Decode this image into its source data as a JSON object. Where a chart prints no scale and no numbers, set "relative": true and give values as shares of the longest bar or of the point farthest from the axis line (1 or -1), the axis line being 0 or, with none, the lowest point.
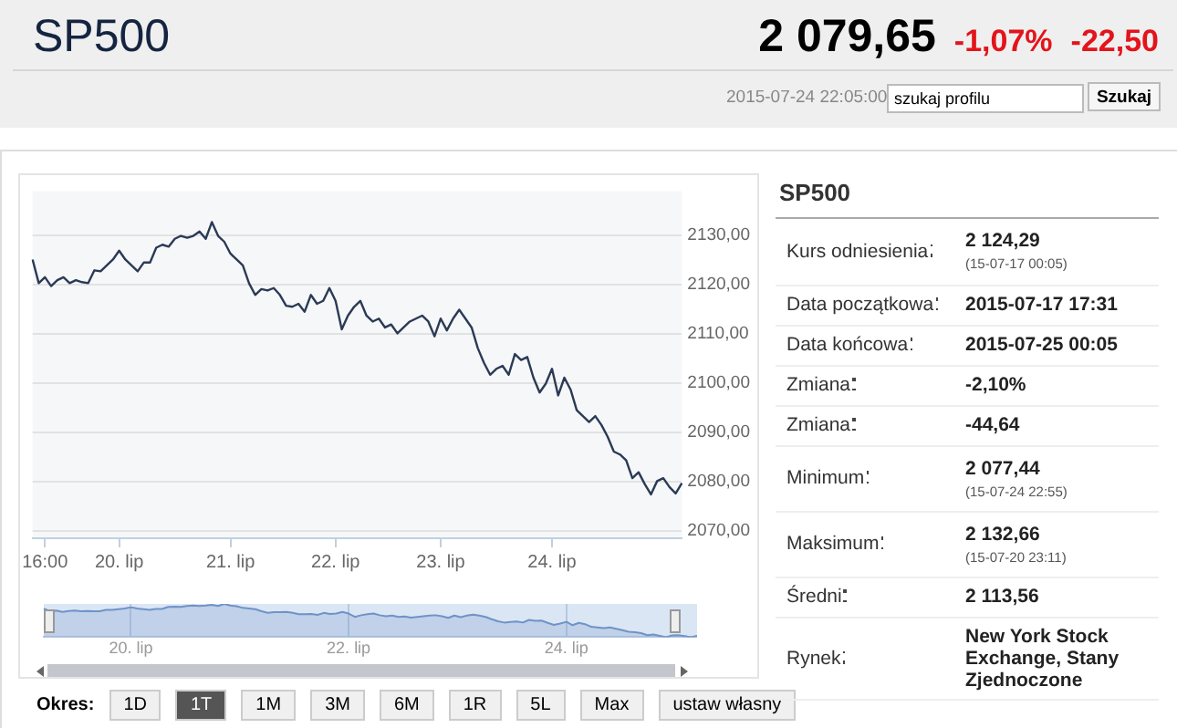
{
  "chart_data": [
    {
      "type": "other",
      "title": "SP500",
      "annotations": [
        "2 079,65",
        "-1,07%",
        "-22,50",
        "2015-07-24 22:05:00",
        "szukaj profilu",
        "Szukaj"
      ]
    },
    {
      "type": "line",
      "color": "#2b3a55",
      "grid": "y",
      "categories": [
        null,
        null,
        "16:00",
        null,
        null,
        null,
        null,
        null,
        null,
        null,
        null,
        null,
        null,
        null,
        "20. lip",
        null,
        null,
        null,
        null,
        null,
        null,
        null,
        null,
        null,
        null,
        null,
        null,
        null,
        null,
        null,
        null,
        null,
        "21. lip",
        null,
        null,
        null,
        null,
        null,
        null,
        null,
        null,
        null,
        null,
        null,
        null,
        null,
        null,
        null,
        null,
        "22. lip",
        null,
        null,
        null,
        null,
        null,
        null,
        null,
        null,
        null,
        null,
        null,
        null,
        null,
        null,
        null,
        null,
        "23. lip",
        null,
        null,
        null,
        null,
        null,
        null,
        null,
        null,
        null,
        null,
        null,
        null,
        null,
        null,
        null,
        null,
        null,
        "24. lip",
        null,
        null,
        null,
        null,
        null,
        null,
        null,
        null,
        null,
        null,
        null,
        null,
        null,
        null,
        null,
        null,
        null,
        null,
        null,
        null,
        null
      ],
      "values": [
        2125.1,
        2120.3,
        2121.5,
        2119.7,
        2120.9,
        2121.5,
        2120.3,
        2120.9,
        2120.5,
        2120.3,
        2122.9,
        2122.7,
        2123.9,
        2125.1,
        2126.9,
        2125.1,
        2123.9,
        2122.7,
        2124.5,
        2124.5,
        2127.5,
        2128.1,
        2127.7,
        2129.3,
        2129.9,
        2129.5,
        2129.9,
        2130.8,
        2129.3,
        2132.7,
        2129.9,
        2128.7,
        2126.3,
        2125.1,
        2123.9,
        2120.3,
        2117.9,
        2119.1,
        2118.8,
        2119.3,
        2117.9,
        2115.7,
        2115.5,
        2116.1,
        2114.5,
        2117.9,
        2116.1,
        2116.7,
        2119.3,
        2116.7,
        2110.9,
        2113.7,
        2115.5,
        2116.7,
        2113.7,
        2112.5,
        2113.1,
        2111.3,
        2111.9,
        2110.1,
        2111.3,
        2112.5,
        2113.1,
        2113.7,
        2112.5,
        2109.5,
        2113.1,
        2110.7,
        2113.1,
        2114.9,
        2113.1,
        2111.3,
        2107.1,
        2104.1,
        2101.7,
        2102.9,
        2103.5,
        2101.7,
        2105.9,
        2104.7,
        2105.3,
        2101.1,
        2098.1,
        2099.9,
        2102.9,
        2097.5,
        2101.1,
        2098.7,
        2094.5,
        2093.3,
        2092.1,
        2093.3,
        2091.5,
        2089.1,
        2086.1,
        2085.5,
        2084.3,
        2080.7,
        2081.9,
        2079.5,
        2077.4,
        2080.1,
        2080.7,
        2078.9,
        2077.6,
        2079.7
      ],
      "ylim": [
        2068.5,
        2139
      ],
      "yticks": [
        {
          "value": 2070,
          "label": "2070,00"
        },
        {
          "value": 2080,
          "label": "2080,00"
        },
        {
          "value": 2090,
          "label": "2090,00"
        },
        {
          "value": 2100,
          "label": "2100,00"
        },
        {
          "value": 2110,
          "label": "2110,00"
        },
        {
          "value": 2120,
          "label": "2120,00"
        },
        {
          "value": 2130,
          "label": "2130,00"
        }
      ]
    },
    {
      "type": "area",
      "relative": true,
      "color": "#6f93c7",
      "grid": "x",
      "categories": [
        null,
        null,
        null,
        null,
        null,
        null,
        null,
        null,
        null,
        null,
        null,
        null,
        null,
        null,
        "20. lip",
        null,
        null,
        null,
        null,
        null,
        null,
        null,
        null,
        null,
        null,
        null,
        null,
        null,
        null,
        null,
        null,
        null,
        null,
        null,
        null,
        null,
        null,
        null,
        null,
        null,
        null,
        null,
        null,
        null,
        null,
        null,
        null,
        null,
        null,
        "22. lip",
        null,
        null,
        null,
        null,
        null,
        null,
        null,
        null,
        null,
        null,
        null,
        null,
        null,
        null,
        null,
        null,
        null,
        null,
        null,
        null,
        null,
        null,
        null,
        null,
        null,
        null,
        null,
        null,
        null,
        null,
        null,
        null,
        null,
        null,
        "24. lip",
        null,
        null,
        null,
        null,
        null,
        null,
        null,
        null,
        null,
        null,
        null,
        null,
        null,
        null,
        null,
        null,
        null,
        null,
        null,
        null,
        null
      ],
      "values": [
        0.86,
        0.78,
        0.8,
        0.76,
        0.79,
        0.8,
        0.78,
        0.79,
        0.78,
        0.78,
        0.82,
        0.82,
        0.84,
        0.86,
        0.9,
        0.86,
        0.84,
        0.82,
        0.85,
        0.85,
        0.91,
        0.92,
        0.91,
        0.94,
        0.95,
        0.94,
        0.95,
        0.97,
        0.94,
        1,
        0.95,
        0.93,
        0.88,
        0.86,
        0.84,
        0.78,
        0.73,
        0.75,
        0.75,
        0.76,
        0.73,
        0.69,
        0.69,
        0.7,
        0.67,
        0.73,
        0.7,
        0.71,
        0.76,
        0.71,
        0.61,
        0.66,
        0.69,
        0.71,
        0.66,
        0.63,
        0.65,
        0.61,
        0.62,
        0.59,
        0.61,
        0.63,
        0.65,
        0.66,
        0.63,
        0.58,
        0.65,
        0.6,
        0.65,
        0.68,
        0.65,
        0.61,
        0.54,
        0.48,
        0.44,
        0.46,
        0.47,
        0.44,
        0.52,
        0.49,
        0.5,
        0.43,
        0.37,
        0.41,
        0.46,
        0.36,
        0.43,
        0.39,
        0.31,
        0.29,
        0.27,
        0.29,
        0.25,
        0.21,
        0.16,
        0.15,
        0.12,
        0.06,
        0.08,
        0.04,
        0,
        0.05,
        0.06,
        0.03,
        0,
        0.04
      ]
    },
    {
      "type": "other",
      "annotations": [
        "Okres:",
        "1D",
        "1T",
        "1M",
        "3M",
        "6M",
        "1R",
        "5L",
        "Max",
        "ustaw własny"
      ]
    },
    {
      "type": "other",
      "title": "SP500",
      "categories": [
        "Kurs odniesienia",
        "Data początkowa",
        "Data końcowa",
        "Zmiana",
        "Zmiana",
        "Minimum",
        "Maksimum",
        "Średni",
        "Rynek"
      ],
      "annotations": [
        "2 124,29\n(15-07-17 00:05)",
        "2015-07-17 17:31",
        "2015-07-25 00:05",
        "-2,10%",
        "-44,64",
        "2 077,44\n(15-07-24 22:55)",
        "2 132,66\n(15-07-20 23:11)",
        "2 113,56",
        "New York Stock Exchange, Stany Zjednoczone"
      ]
    }
  ]
}
